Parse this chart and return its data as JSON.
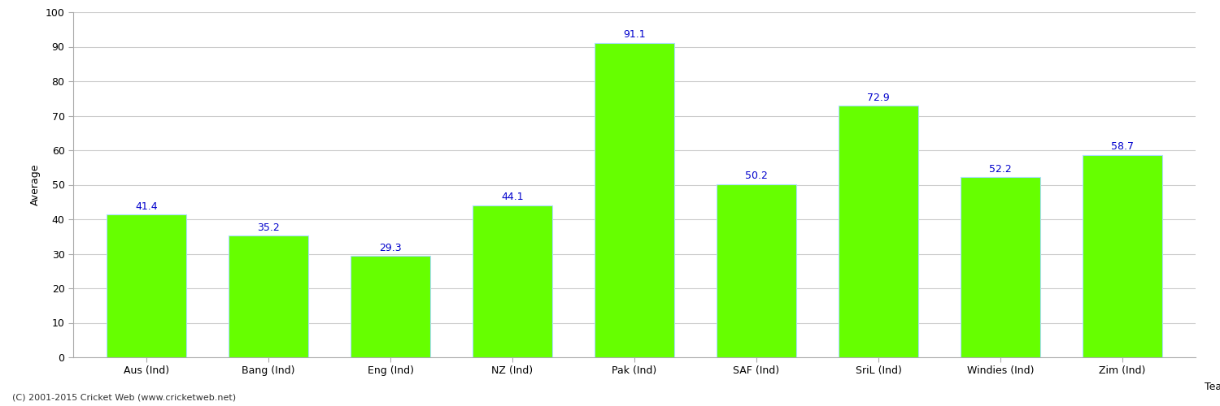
{
  "categories": [
    "Aus (Ind)",
    "Bang (Ind)",
    "Eng (Ind)",
    "NZ (Ind)",
    "Pak (Ind)",
    "SAF (Ind)",
    "SriL (Ind)",
    "Windies (Ind)",
    "Zim (Ind)"
  ],
  "values": [
    41.4,
    35.2,
    29.3,
    44.1,
    91.1,
    50.2,
    72.9,
    52.2,
    58.7
  ],
  "bar_color": "#66ff00",
  "bar_edge_color": "#aaddff",
  "value_label_color": "#0000cc",
  "xlabel": "Team",
  "ylabel": "Average",
  "ylim": [
    0,
    100
  ],
  "yticks": [
    0,
    10,
    20,
    30,
    40,
    50,
    60,
    70,
    80,
    90,
    100
  ],
  "grid_color": "#cccccc",
  "background_color": "#ffffff",
  "axes_background_color": "#ffffff",
  "footnote": "(C) 2001-2015 Cricket Web (www.cricketweb.net)",
  "value_fontsize": 9,
  "label_fontsize": 9,
  "axis_label_fontsize": 9,
  "tick_fontsize": 9,
  "bar_width": 0.65
}
